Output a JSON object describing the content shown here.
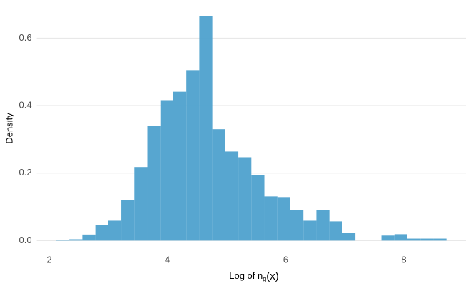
{
  "chart_data": {
    "type": "histogram",
    "xlabel": {
      "text": "Log of n",
      "subscript": "g",
      "suffix": "(x)"
    },
    "ylabel": "Density",
    "bins": [
      2.12,
      2.34,
      2.56,
      2.78,
      3.0,
      3.22,
      3.44,
      3.66,
      3.88,
      4.1,
      4.32,
      4.54,
      4.76,
      4.98,
      5.2,
      5.42,
      5.64,
      5.86,
      6.08,
      6.3,
      6.52,
      6.74,
      6.96,
      7.18,
      7.4,
      7.62,
      7.84,
      8.06,
      8.28,
      8.5,
      8.72
    ],
    "values": [
      0.002,
      0.004,
      0.018,
      0.047,
      0.059,
      0.12,
      0.218,
      0.34,
      0.416,
      0.441,
      0.505,
      0.665,
      0.33,
      0.264,
      0.247,
      0.194,
      0.131,
      0.129,
      0.091,
      0.059,
      0.091,
      0.057,
      0.023,
      0,
      0,
      0.015,
      0.019,
      0.006,
      0.006,
      0.006
    ],
    "color": "#4ea1cd",
    "xlim": [
      1.79,
      9.05
    ],
    "ylim": [
      -0.033,
      0.698
    ],
    "xticks": [
      2,
      4,
      6,
      8
    ],
    "yticks": [
      {
        "value": 0,
        "label": "0.0"
      },
      {
        "value": 0.2,
        "label": "0.2"
      },
      {
        "value": 0.4,
        "label": "0.4"
      },
      {
        "value": 0.6,
        "label": "0.6"
      }
    ],
    "grid": true
  }
}
